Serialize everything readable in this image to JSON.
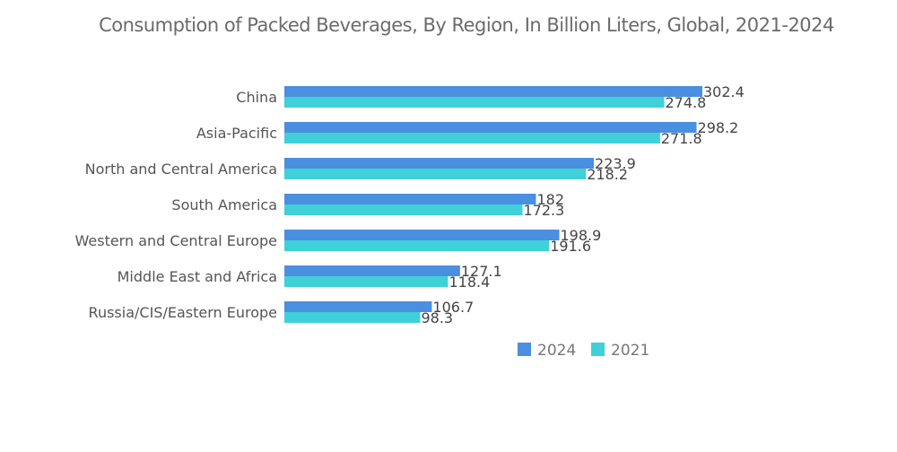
{
  "chart_data": {
    "type": "bar",
    "orientation": "horizontal",
    "title": "Consumption of Packed Beverages, By Region, In Billion Liters, Global, 2021-2024",
    "xlabel": "",
    "ylabel": "",
    "categories": [
      "China",
      "Asia-Pacific",
      "North and Central America",
      "South America",
      "Western and Central Europe",
      "Middle East and Africa",
      "Russia/CIS/Eastern Europe"
    ],
    "series": [
      {
        "name": "2024",
        "color": "#4a8fe0",
        "values": [
          302.4,
          298.2,
          223.9,
          182,
          198.9,
          127.1,
          106.7
        ],
        "labels": [
          "302.4",
          "298.2",
          "223.9",
          "182",
          "198.9",
          "127.1",
          "106.7"
        ]
      },
      {
        "name": "2021",
        "color": "#3fd0d8",
        "values": [
          274.8,
          271.8,
          218.2,
          172.3,
          191.6,
          118.4,
          98.3
        ],
        "labels": [
          "274.8",
          "271.8",
          "218.2",
          "172.3",
          "191.6",
          "118.4",
          "98.3"
        ]
      }
    ],
    "xlim": [
      0,
      302.4
    ],
    "grid": false,
    "axis_visible": false,
    "legend_position": "bottom"
  }
}
